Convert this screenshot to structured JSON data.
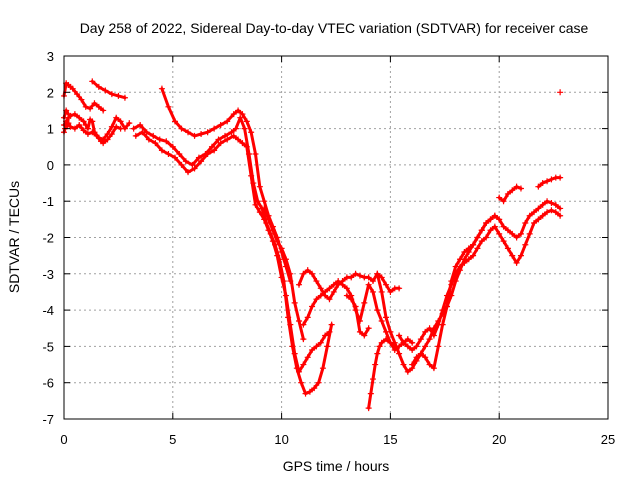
{
  "chart_data": {
    "type": "scatter",
    "title": "Day 258 of 2022, Sidereal Day-to-day VTEC variation (SDTVAR) for receiver case",
    "xlabel": "GPS time / hours",
    "ylabel": "SDTVAR / TECUs",
    "xlim": [
      0,
      25
    ],
    "ylim": [
      -7,
      3
    ],
    "x_ticks": [
      "0",
      "5",
      "10",
      "15",
      "20",
      "25"
    ],
    "y_ticks": [
      "3",
      "2",
      "1",
      "0",
      "-1",
      "-2",
      "-3",
      "-4",
      "-5",
      "-6",
      "-7"
    ],
    "x_tick_values": [
      0,
      5,
      10,
      15,
      20,
      25
    ],
    "y_tick_values": [
      3,
      2,
      1,
      0,
      -1,
      -2,
      -3,
      -4,
      -5,
      -6,
      -7
    ],
    "grid": true,
    "marker": "plus",
    "color": "#ff0000",
    "series": [
      {
        "x": [
          0.0,
          0.1,
          0.2,
          0.3,
          0.5,
          0.7,
          0.9,
          1.0,
          1.1,
          1.2,
          1.3,
          1.4,
          1.6,
          1.8,
          2.0,
          2.2,
          2.4,
          2.6,
          2.8,
          3.0
        ],
        "y": [
          1.3,
          1.5,
          1.4,
          1.35,
          1.4,
          1.3,
          1.2,
          1.1,
          1.0,
          1.25,
          1.2,
          0.9,
          0.75,
          0.7,
          0.85,
          1.05,
          1.3,
          1.2,
          1.0,
          1.15
        ]
      },
      {
        "x": [
          0.0,
          0.1,
          0.2,
          0.3,
          0.5,
          0.7,
          0.9,
          1.1,
          1.3,
          1.5,
          1.7,
          1.8,
          2.0,
          2.2,
          2.4,
          2.6
        ],
        "y": [
          1.1,
          1.2,
          1.15,
          1.05,
          1.0,
          1.1,
          0.95,
          0.85,
          0.9,
          0.8,
          0.65,
          0.6,
          0.7,
          0.85,
          1.05,
          1.0
        ]
      },
      {
        "x": [
          0.0,
          0.1,
          0.2,
          0.3,
          0.4,
          0.6,
          0.8,
          1.0,
          1.2,
          1.4,
          1.6,
          1.8
        ],
        "y": [
          1.9,
          2.25,
          2.2,
          2.15,
          2.1,
          1.95,
          1.8,
          1.6,
          1.55,
          1.7,
          1.6,
          1.5
        ]
      },
      {
        "x": [
          0.0,
          0.05,
          0.1,
          0.15,
          0.2
        ],
        "y": [
          0.9,
          1.0,
          1.2,
          1.1,
          1.3
        ]
      },
      {
        "x": [
          1.3,
          1.6,
          1.9,
          2.2,
          2.5,
          2.8
        ],
        "y": [
          2.3,
          2.15,
          2.05,
          1.95,
          1.9,
          1.85
        ]
      },
      {
        "x": [
          3.2,
          3.5,
          3.8,
          4.1,
          4.4,
          4.7,
          5.0,
          5.3,
          5.6,
          5.9,
          6.2,
          6.5,
          6.8,
          7.1,
          7.4,
          7.7,
          7.9,
          8.1,
          8.3,
          8.5,
          8.7,
          8.9,
          9.1,
          9.3,
          9.5,
          9.7,
          9.9,
          10.1,
          10.3,
          10.5,
          10.7,
          10.9,
          11.1,
          11.3,
          11.5,
          11.7,
          11.9,
          12.1,
          12.3
        ],
        "y": [
          1.0,
          1.1,
          0.9,
          0.8,
          0.7,
          0.65,
          0.5,
          0.3,
          0.1,
          0.0,
          0.2,
          0.3,
          0.5,
          0.7,
          0.8,
          0.9,
          1.0,
          1.3,
          1.0,
          0.3,
          -0.5,
          -1.0,
          -1.2,
          -1.6,
          -1.9,
          -2.2,
          -2.6,
          -3.2,
          -4.2,
          -5.0,
          -5.6,
          -6.0,
          -6.3,
          -6.25,
          -6.15,
          -6.0,
          -5.6,
          -5.0,
          -4.4
        ]
      },
      {
        "x": [
          3.3,
          3.6,
          3.9,
          4.2,
          4.5,
          4.8,
          5.1,
          5.4,
          5.7,
          6.0,
          6.3,
          6.6,
          6.9,
          7.2,
          7.5,
          7.8,
          8.0,
          8.2,
          8.4,
          8.6,
          8.8,
          9.0,
          9.2,
          9.4,
          9.6,
          9.8,
          10.0,
          10.2,
          10.4,
          10.6,
          10.8,
          11.0,
          11.2,
          11.4,
          11.6,
          11.8,
          12.0,
          12.2
        ],
        "y": [
          0.8,
          0.9,
          0.7,
          0.6,
          0.4,
          0.3,
          0.2,
          0.0,
          -0.2,
          -0.1,
          0.1,
          0.3,
          0.4,
          0.6,
          0.7,
          0.8,
          0.7,
          0.6,
          0.5,
          -0.3,
          -1.1,
          -1.3,
          -1.5,
          -1.8,
          -2.1,
          -2.5,
          -3.1,
          -3.6,
          -4.4,
          -5.2,
          -5.7,
          -5.5,
          -5.3,
          -5.1,
          -5.0,
          -4.9,
          -4.7,
          -4.6
        ]
      },
      {
        "x": [
          4.5,
          4.8,
          5.1,
          5.4,
          5.7,
          6.0,
          6.3,
          6.6,
          6.9,
          7.2,
          7.5,
          7.8,
          8.0,
          8.2,
          8.4,
          8.6,
          8.8,
          9.0,
          9.2,
          9.4,
          9.6,
          9.8,
          10.0,
          10.2,
          10.4
        ],
        "y": [
          2.1,
          1.6,
          1.2,
          1.0,
          0.9,
          0.8,
          0.85,
          0.9,
          1.0,
          1.1,
          1.2,
          1.4,
          1.5,
          1.4,
          1.2,
          0.9,
          0.3,
          -0.6,
          -1.0,
          -1.4,
          -1.7,
          -2.0,
          -2.4,
          -2.8,
          -3.2
        ]
      },
      {
        "x": [
          9.2,
          9.4,
          9.6,
          9.8,
          10.0,
          10.2,
          10.4,
          10.6,
          10.8,
          11.0
        ],
        "y": [
          -1.2,
          -1.5,
          -1.8,
          -2.1,
          -2.3,
          -2.6,
          -3.0,
          -3.8,
          -4.3,
          -4.8
        ]
      },
      {
        "x": [
          10.8,
          11.0,
          11.2,
          11.4,
          11.6,
          11.8,
          12.0,
          12.2,
          12.4,
          12.6,
          12.8,
          13.0,
          13.2,
          13.4,
          13.6,
          13.8,
          14.0,
          14.2,
          14.4,
          14.6,
          14.8,
          15.0,
          15.2,
          15.4
        ],
        "y": [
          -3.3,
          -3.0,
          -2.9,
          -3.0,
          -3.2,
          -3.4,
          -3.6,
          -3.7,
          -3.5,
          -3.3,
          -3.2,
          -3.1,
          -3.1,
          -3.0,
          -3.05,
          -3.1,
          -3.1,
          -3.2,
          -3.0,
          -3.1,
          -3.3,
          -3.5,
          -3.4,
          -3.4
        ]
      },
      {
        "x": [
          11.0,
          11.2,
          11.4,
          11.6,
          11.8,
          12.0,
          12.2,
          12.4,
          12.6,
          12.8,
          13.0,
          13.2,
          13.4,
          13.6,
          13.8,
          14.0,
          14.2,
          14.4,
          14.6,
          14.8,
          15.0,
          15.2,
          15.4,
          15.6,
          15.8,
          16.0
        ],
        "y": [
          -4.4,
          -4.2,
          -3.9,
          -3.7,
          -3.6,
          -3.5,
          -3.4,
          -3.3,
          -3.2,
          -3.3,
          -3.4,
          -3.6,
          -4.0,
          -4.3,
          -3.8,
          -3.3,
          -3.5,
          -4.0,
          -4.3,
          -4.6,
          -4.9,
          -5.1,
          -5.0,
          -4.9,
          -4.8,
          -4.9
        ]
      },
      {
        "x": [
          13.0,
          13.2,
          13.4,
          13.6,
          13.8,
          14.0
        ],
        "y": [
          -3.6,
          -3.7,
          -3.9,
          -4.6,
          -4.7,
          -4.5
        ]
      },
      {
        "x": [
          14.0,
          14.1,
          14.2,
          14.3,
          14.4,
          14.5,
          14.6,
          14.8,
          15.0,
          15.2
        ],
        "y": [
          -6.7,
          -6.3,
          -5.9,
          -5.5,
          -5.2,
          -5.0,
          -4.9,
          -4.8,
          -4.9,
          -5.0
        ]
      },
      {
        "x": [
          14.4,
          14.6,
          14.8,
          15.0,
          15.2,
          15.4,
          15.6,
          15.8,
          16.0,
          16.2,
          16.4,
          16.6,
          16.8,
          17.0,
          17.2,
          17.4,
          17.6,
          17.8,
          18.0,
          18.2,
          18.4,
          18.6,
          18.8,
          19.0,
          19.2,
          19.4,
          19.6,
          19.8,
          20.0,
          20.2,
          20.4,
          20.6,
          20.8,
          21.0,
          21.2,
          21.4,
          21.6,
          21.8,
          22.0,
          22.2,
          22.4,
          22.6,
          22.8
        ],
        "y": [
          -3.0,
          -3.5,
          -4.2,
          -4.6,
          -4.9,
          -5.2,
          -5.5,
          -5.7,
          -5.6,
          -5.4,
          -5.2,
          -5.3,
          -5.5,
          -5.6,
          -5.0,
          -4.4,
          -3.9,
          -3.2,
          -2.8,
          -2.6,
          -2.4,
          -2.3,
          -2.2,
          -2.0,
          -1.8,
          -1.6,
          -1.5,
          -1.4,
          -1.5,
          -1.7,
          -1.8,
          -1.9,
          -2.0,
          -1.9,
          -1.6,
          -1.4,
          -1.3,
          -1.2,
          -1.1,
          -1.0,
          -1.05,
          -1.1,
          -1.2
        ]
      },
      {
        "x": [
          15.4,
          15.6,
          15.8,
          16.0,
          16.2,
          16.4,
          16.6,
          16.8,
          17.0,
          17.2,
          17.4,
          17.6,
          17.8,
          18.0,
          18.2,
          18.4,
          18.6,
          18.8,
          19.0,
          19.2,
          19.4,
          19.6,
          19.8,
          20.0,
          20.2,
          20.4,
          20.6,
          20.8,
          21.0,
          21.2,
          21.4,
          21.6,
          21.8,
          22.0,
          22.2,
          22.4,
          22.6,
          22.8
        ],
        "y": [
          -4.7,
          -4.9,
          -5.0,
          -5.1,
          -5.0,
          -4.8,
          -4.6,
          -4.5,
          -4.7,
          -4.4,
          -4.0,
          -3.6,
          -3.3,
          -3.0,
          -2.8,
          -2.7,
          -2.6,
          -2.5,
          -2.3,
          -2.1,
          -2.0,
          -1.8,
          -1.7,
          -1.9,
          -2.1,
          -2.3,
          -2.5,
          -2.7,
          -2.5,
          -2.2,
          -1.9,
          -1.6,
          -1.5,
          -1.4,
          -1.3,
          -1.25,
          -1.3,
          -1.4
        ]
      },
      {
        "x": [
          16.0,
          16.2,
          16.4,
          16.6,
          16.8,
          17.0,
          17.2,
          17.4,
          17.6,
          17.8,
          18.0,
          18.2,
          18.4,
          18.6,
          18.8,
          19.0,
          19.2,
          19.4,
          19.6,
          19.8
        ],
        "y": [
          -5.5,
          -5.3,
          -5.2,
          -5.0,
          -4.8,
          -4.5,
          -4.3,
          -4.1,
          -3.9,
          -3.6,
          -3.2,
          -2.9,
          -2.6,
          -2.4,
          -2.2,
          -2.0,
          -1.8,
          -1.6,
          -1.5,
          -1.4
        ]
      },
      {
        "x": [
          20.0,
          20.2,
          20.4,
          20.6,
          20.8,
          21.0
        ],
        "y": [
          -0.9,
          -1.0,
          -0.8,
          -0.7,
          -0.6,
          -0.65
        ]
      },
      {
        "x": [
          21.8,
          22.0,
          22.2,
          22.4,
          22.6,
          22.8
        ],
        "y": [
          -0.6,
          -0.5,
          -0.45,
          -0.4,
          -0.35,
          -0.35
        ]
      },
      {
        "x": [
          22.8
        ],
        "y": [
          2.0
        ]
      }
    ]
  }
}
